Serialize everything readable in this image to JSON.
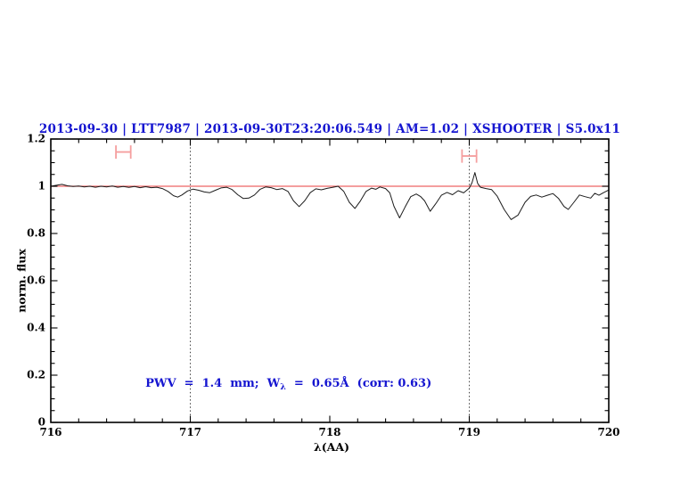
{
  "title": {
    "text": "2013-09-30 | LTT7987 | 2013-09-30T23:20:06.549 | AM=1.02 | XSHOOTER | S5.0x11",
    "color": "#1515d0"
  },
  "annotation": {
    "prefix": "PWV  =  1.4  mm;  W",
    "sub": "λ",
    "suffix": "  =  0.65Å  (corr: 0.63)",
    "color": "#1515d0"
  },
  "axes": {
    "x_label": "λ(AA)",
    "y_label": "norm. flux",
    "x_range": [
      716,
      720
    ],
    "y_range": [
      0,
      1.2
    ],
    "x_minor_step": 0.2,
    "y_minor_step": 0.05,
    "x_major_ticks": [
      {
        "value": 716,
        "label": "716"
      },
      {
        "value": 717,
        "label": "717"
      },
      {
        "value": 718,
        "label": "718"
      },
      {
        "value": 719,
        "label": "719"
      },
      {
        "value": 720,
        "label": "720"
      }
    ],
    "y_major_ticks": [
      {
        "value": 0,
        "label": "0"
      },
      {
        "value": 0.2,
        "label": "0.2"
      },
      {
        "value": 0.4,
        "label": "0.4"
      },
      {
        "value": 0.6,
        "label": "0.6"
      },
      {
        "value": 0.8,
        "label": "0.8"
      },
      {
        "value": 1,
        "label": "1"
      },
      {
        "value": 1.2,
        "label": "1.2"
      }
    ],
    "frame_color": "#000000"
  },
  "chart_data": {
    "type": "line",
    "title": "2013-09-30 | LTT7987 | 2013-09-30T23:20:06.549 | AM=1.02 | XSHOOTER | S5.0x11",
    "xlabel": "λ(AA)",
    "ylabel": "norm. flux",
    "xlim": [
      716,
      720
    ],
    "ylim": [
      0,
      1.2
    ],
    "grid": false,
    "legend": "none",
    "vlines": [
      {
        "x": 717,
        "style": "dotted",
        "color": "#444444"
      },
      {
        "x": 719,
        "style": "dotted",
        "color": "#444444"
      }
    ],
    "series": [
      {
        "name": "continuum-fit",
        "color": "#ee6565",
        "width": 1.3,
        "points": [
          [
            716.0,
            1.0
          ],
          [
            720.0,
            1.0
          ]
        ]
      },
      {
        "name": "observed-spectrum",
        "color": "#1b1b1b",
        "width": 1.0,
        "points": [
          [
            716.0,
            1.0
          ],
          [
            716.04,
            1.004
          ],
          [
            716.08,
            1.008
          ],
          [
            716.12,
            1.002
          ],
          [
            716.16,
            0.999
          ],
          [
            716.2,
            1.001
          ],
          [
            716.24,
            0.997
          ],
          [
            716.28,
            1.0
          ],
          [
            716.32,
            0.996
          ],
          [
            716.36,
            1.0
          ],
          [
            716.4,
            0.997
          ],
          [
            716.44,
            1.001
          ],
          [
            716.48,
            0.996
          ],
          [
            716.52,
            0.999
          ],
          [
            716.56,
            0.995
          ],
          [
            716.6,
            0.999
          ],
          [
            716.64,
            0.994
          ],
          [
            716.68,
            0.998
          ],
          [
            716.72,
            0.994
          ],
          [
            716.76,
            0.996
          ],
          [
            716.8,
            0.99
          ],
          [
            716.84,
            0.978
          ],
          [
            716.88,
            0.96
          ],
          [
            716.91,
            0.954
          ],
          [
            716.94,
            0.963
          ],
          [
            716.98,
            0.98
          ],
          [
            717.02,
            0.988
          ],
          [
            717.06,
            0.983
          ],
          [
            717.1,
            0.976
          ],
          [
            717.14,
            0.973
          ],
          [
            717.18,
            0.983
          ],
          [
            717.22,
            0.993
          ],
          [
            717.26,
            0.996
          ],
          [
            717.3,
            0.986
          ],
          [
            717.34,
            0.964
          ],
          [
            717.38,
            0.948
          ],
          [
            717.42,
            0.95
          ],
          [
            717.46,
            0.963
          ],
          [
            717.5,
            0.987
          ],
          [
            717.54,
            0.997
          ],
          [
            717.58,
            0.994
          ],
          [
            717.62,
            0.986
          ],
          [
            717.66,
            0.99
          ],
          [
            717.7,
            0.978
          ],
          [
            717.74,
            0.938
          ],
          [
            717.78,
            0.914
          ],
          [
            717.82,
            0.938
          ],
          [
            717.86,
            0.973
          ],
          [
            717.9,
            0.989
          ],
          [
            717.94,
            0.985
          ],
          [
            717.98,
            0.991
          ],
          [
            718.02,
            0.995
          ],
          [
            718.06,
            1.0
          ],
          [
            718.1,
            0.978
          ],
          [
            718.14,
            0.932
          ],
          [
            718.18,
            0.906
          ],
          [
            718.22,
            0.938
          ],
          [
            718.26,
            0.978
          ],
          [
            718.3,
            0.992
          ],
          [
            718.33,
            0.987
          ],
          [
            718.36,
            0.997
          ],
          [
            718.4,
            0.99
          ],
          [
            718.43,
            0.972
          ],
          [
            718.46,
            0.915
          ],
          [
            718.5,
            0.866
          ],
          [
            718.54,
            0.912
          ],
          [
            718.58,
            0.956
          ],
          [
            718.62,
            0.967
          ],
          [
            718.65,
            0.957
          ],
          [
            718.68,
            0.938
          ],
          [
            718.72,
            0.894
          ],
          [
            718.76,
            0.926
          ],
          [
            718.8,
            0.962
          ],
          [
            718.84,
            0.974
          ],
          [
            718.88,
            0.964
          ],
          [
            718.92,
            0.981
          ],
          [
            718.96,
            0.972
          ],
          [
            719.0,
            0.992
          ],
          [
            719.02,
            1.015
          ],
          [
            719.04,
            1.058
          ],
          [
            719.06,
            1.012
          ],
          [
            719.08,
            0.996
          ],
          [
            719.12,
            0.99
          ],
          [
            719.16,
            0.986
          ],
          [
            719.2,
            0.958
          ],
          [
            719.25,
            0.902
          ],
          [
            719.3,
            0.859
          ],
          [
            719.35,
            0.878
          ],
          [
            719.4,
            0.932
          ],
          [
            719.44,
            0.957
          ],
          [
            719.48,
            0.963
          ],
          [
            719.52,
            0.954
          ],
          [
            719.56,
            0.962
          ],
          [
            719.6,
            0.969
          ],
          [
            719.64,
            0.948
          ],
          [
            719.68,
            0.914
          ],
          [
            719.71,
            0.902
          ],
          [
            719.75,
            0.932
          ],
          [
            719.79,
            0.963
          ],
          [
            719.83,
            0.956
          ],
          [
            719.87,
            0.95
          ],
          [
            719.9,
            0.97
          ],
          [
            719.93,
            0.962
          ],
          [
            719.96,
            0.972
          ],
          [
            720.0,
            0.984
          ]
        ]
      }
    ],
    "range_markers": [
      {
        "x_center": 716.52,
        "x_halfwidth": 0.053,
        "flux": 1.145,
        "color": "#f59f9f"
      },
      {
        "x_center": 719.0,
        "x_halfwidth": 0.052,
        "flux": 1.128,
        "color": "#f59f9f"
      }
    ],
    "annotation": "PWV = 1.4 mm; W_λ = 0.65Å (corr: 0.63)"
  }
}
